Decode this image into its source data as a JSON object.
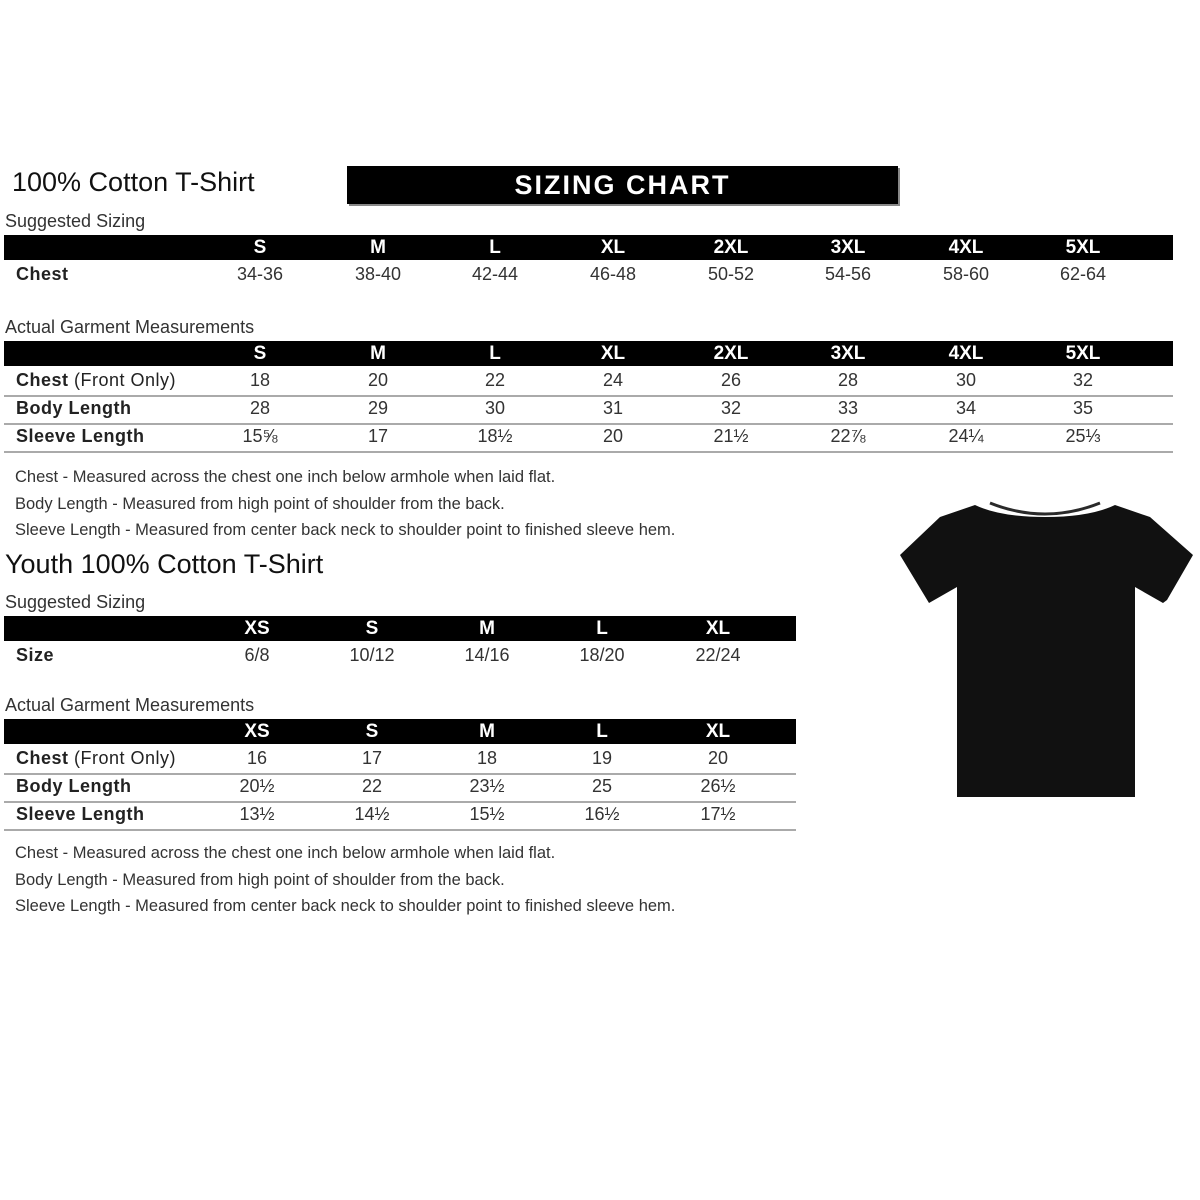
{
  "banner": "SIZING CHART",
  "adult": {
    "title": "100% Cotton T-Shirt",
    "suggested_label": "Suggested Sizing",
    "sizes": [
      "S",
      "M",
      "L",
      "XL",
      "2XL",
      "3XL",
      "4XL",
      "5XL"
    ],
    "suggested_rows": [
      {
        "label": "Chest",
        "values": [
          "34-36",
          "38-40",
          "42-44",
          "46-48",
          "50-52",
          "54-56",
          "58-60",
          "62-64"
        ]
      }
    ],
    "actual_label": "Actual Garment Measurements",
    "actual_rows": [
      {
        "label": "Chest",
        "label_note": "(Front Only)",
        "values": [
          "18",
          "20",
          "22",
          "24",
          "26",
          "28",
          "30",
          "32"
        ]
      },
      {
        "label": "Body Length",
        "values": [
          "28",
          "29",
          "30",
          "31",
          "32",
          "33",
          "34",
          "35"
        ]
      },
      {
        "label": "Sleeve Length",
        "values": [
          "15⅝",
          "17",
          "18½",
          "20",
          "21½",
          "22⅞",
          "24¼",
          "25⅓"
        ]
      }
    ],
    "notes": [
      "Chest - Measured across the chest one inch below armhole when laid flat.",
      "Body Length - Measured from high point of shoulder from the back.",
      "Sleeve Length - Measured from center back neck to shoulder point to finished sleeve hem."
    ]
  },
  "youth": {
    "title": "Youth 100% Cotton T-Shirt",
    "suggested_label": "Suggested Sizing",
    "sizes": [
      "XS",
      "S",
      "M",
      "L",
      "XL"
    ],
    "suggested_rows": [
      {
        "label": "Size",
        "values": [
          "6/8",
          "10/12",
          "14/16",
          "18/20",
          "22/24"
        ]
      }
    ],
    "actual_label": "Actual Garment Measurements",
    "actual_rows": [
      {
        "label": "Chest",
        "label_note": "(Front Only)",
        "values": [
          "16",
          "17",
          "18",
          "19",
          "20"
        ]
      },
      {
        "label": "Body Length",
        "values": [
          "20½",
          "22",
          "23½",
          "25",
          "26½"
        ]
      },
      {
        "label": "Sleeve Length",
        "values": [
          "13½",
          "14½",
          "15½",
          "16½",
          "17½"
        ]
      }
    ],
    "notes": [
      "Chest - Measured across the chest one inch below armhole when laid flat.",
      "Body Length - Measured from high point of shoulder from the back.",
      "Sleeve Length - Measured from center back neck to shoulder point to finished sleeve hem."
    ]
  },
  "image": {
    "icon": "tshirt-icon",
    "color": "#111111"
  }
}
